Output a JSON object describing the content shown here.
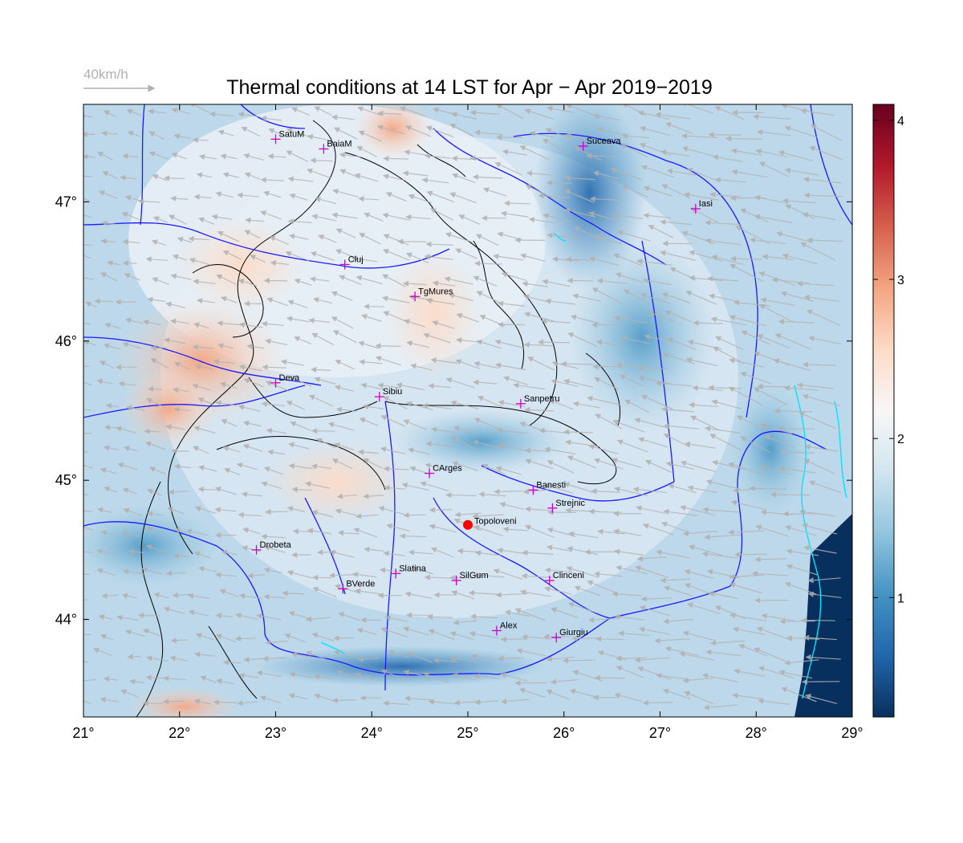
{
  "title": "Thermal conditions at 14 LST for Apr − Apr  2019−2019",
  "wind_legend": {
    "label": "40km/h",
    "color": "#b0b0b0"
  },
  "axes": {
    "lon_range": [
      21,
      29
    ],
    "lat_range": [
      43.3,
      47.7
    ],
    "lon_ticks": [
      21,
      22,
      23,
      24,
      25,
      26,
      27,
      28,
      29
    ],
    "lat_ticks": [
      44,
      45,
      46,
      47
    ],
    "lon_tick_labels": [
      "21°",
      "22°",
      "23°",
      "24°",
      "25°",
      "26°",
      "27°",
      "28°",
      "29°"
    ],
    "lat_tick_labels": [
      "44°",
      "45°",
      "46°",
      "47°"
    ]
  },
  "colorbar": {
    "range": [
      0.25,
      4.1
    ],
    "ticks": [
      1,
      2,
      3,
      4
    ],
    "tick_labels": [
      "1",
      "2",
      "3",
      "4"
    ],
    "colors": [
      "#08305e",
      "#2166ac",
      "#4393c3",
      "#92c5de",
      "#d1e5f0",
      "#f7f7f7",
      "#fddbc7",
      "#f4a582",
      "#d6604d",
      "#b2182b",
      "#67001f"
    ]
  },
  "colors": {
    "borders": "#1a1aff",
    "contours": "#000000",
    "station_marker": "#cc00cc",
    "highlight_point": "#ff0000",
    "lakes_coast": "#00e5ff"
  },
  "stations": [
    {
      "name": "SatuM",
      "lon": 23.0,
      "lat": 47.45
    },
    {
      "name": "BaiaM",
      "lon": 23.5,
      "lat": 47.38
    },
    {
      "name": "Suceava",
      "lon": 26.2,
      "lat": 47.4
    },
    {
      "name": "Iasi",
      "lon": 27.37,
      "lat": 46.95
    },
    {
      "name": "Cluj",
      "lon": 23.72,
      "lat": 46.55
    },
    {
      "name": "TgMures",
      "lon": 24.45,
      "lat": 46.32
    },
    {
      "name": "Deva",
      "lon": 23.0,
      "lat": 45.7
    },
    {
      "name": "Sibiu",
      "lon": 24.08,
      "lat": 45.6
    },
    {
      "name": "Sanpetru",
      "lon": 25.55,
      "lat": 45.55
    },
    {
      "name": "CArges",
      "lon": 24.6,
      "lat": 45.05
    },
    {
      "name": "Banesti",
      "lon": 25.68,
      "lat": 44.93
    },
    {
      "name": "Strejnic",
      "lon": 25.88,
      "lat": 44.8
    },
    {
      "name": "Drobeta",
      "lon": 22.8,
      "lat": 44.5
    },
    {
      "name": "Slatina",
      "lon": 24.25,
      "lat": 44.33
    },
    {
      "name": "SilGum",
      "lon": 24.88,
      "lat": 44.28
    },
    {
      "name": "Clinceni",
      "lon": 25.85,
      "lat": 44.28
    },
    {
      "name": "BVerde",
      "lon": 23.7,
      "lat": 44.22
    },
    {
      "name": "Alex",
      "lon": 25.3,
      "lat": 43.92
    },
    {
      "name": "Giurgiu",
      "lon": 25.92,
      "lat": 43.87
    }
  ],
  "highlight": {
    "name": "Topoloveni",
    "lon": 25.0,
    "lat": 44.68
  }
}
